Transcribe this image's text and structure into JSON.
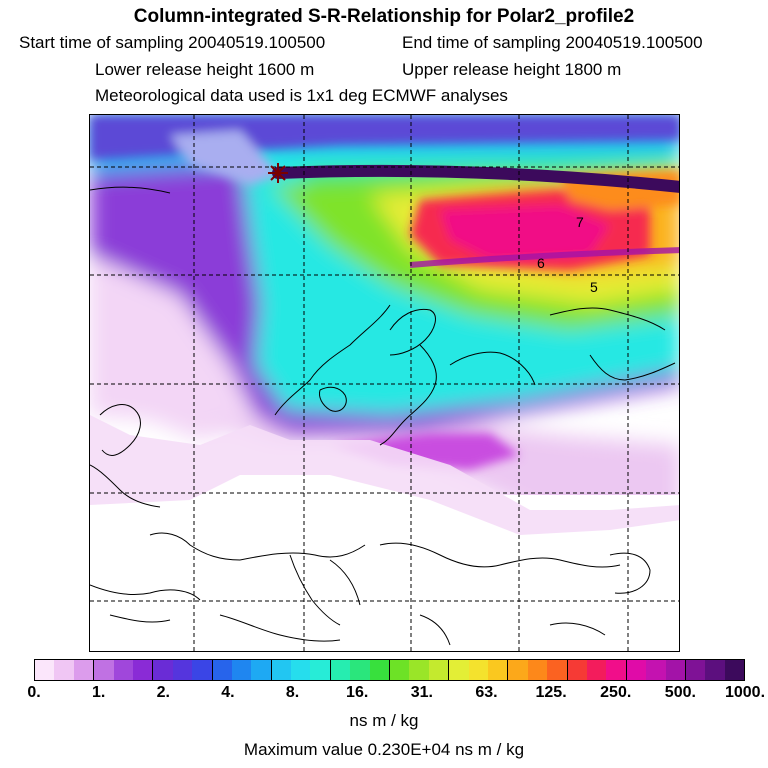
{
  "header": {
    "title": "Column-integrated S-R-Relationship for Polar2_profile2",
    "start_time": "Start time of sampling 20040519.100500",
    "end_time": "End time of sampling 20040519.100500",
    "lower_height": "Lower release height 1600 m",
    "upper_height": "Upper release height 1800 m",
    "met_data": "Meteorological data used is 1x1 deg ECMWF analyses"
  },
  "map": {
    "release_marker": "star-icon",
    "contour_labels": [
      "7",
      "6",
      "5"
    ]
  },
  "colorbar": {
    "ticks": [
      "0.",
      "1.",
      "2.",
      "4.",
      "8.",
      "16.",
      "31.",
      "63.",
      "125.",
      "250.",
      "500.",
      "1000."
    ],
    "colors": [
      "#fbe6fb",
      "#f0c6f4",
      "#dc9cec",
      "#c071e3",
      "#a047db",
      "#8a2bd6",
      "#6a2cd6",
      "#5535dd",
      "#3a45e6",
      "#2764eb",
      "#1f86f0",
      "#1ea9f3",
      "#22c6f2",
      "#26dded",
      "#27ecd7",
      "#26edb0",
      "#2ae67c",
      "#38e03d",
      "#6de226",
      "#9ae528",
      "#c4ea2e",
      "#e3ee36",
      "#f4e22d",
      "#fac81f",
      "#fca81a",
      "#fd881a",
      "#fb6221",
      "#f63a35",
      "#f31c5c",
      "#f10e8a",
      "#e00ba8",
      "#c412b0",
      "#a313a8",
      "#7f1296",
      "#5c0f7e",
      "#3c0a5c"
    ],
    "units": "ns m / kg",
    "maximum": "Maximum value 0.230E+04 ns m / kg"
  }
}
